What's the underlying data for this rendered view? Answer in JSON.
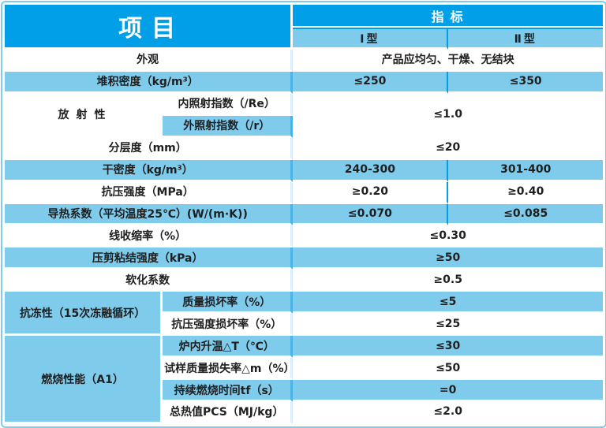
{
  "colors": {
    "accent_bright_blue": "#009fe8",
    "row_light_blue": "#7fcbec",
    "outer_border": "#7fcbec",
    "text_dark": "#1f1f1f",
    "header_text": "#ffffff"
  },
  "header": {
    "item_label": "项目",
    "indicator_label": "指标",
    "type1_label": "Ⅰ型",
    "type2_label": "Ⅱ型"
  },
  "categories": {
    "radioactivity": "放射性",
    "frost_resistance": "抗冻性（15次冻融循环）",
    "combustion": "燃烧性能（A1）"
  },
  "rows": {
    "appearance": {
      "label": "外观",
      "value": "产品应均匀、干燥、无结块"
    },
    "bulk_density": {
      "label": "堆积密度（kg/m³）",
      "v1": "≤250",
      "v2": "≤350"
    },
    "internal_exposure": {
      "label": "内照射指数（/Re）"
    },
    "external_exposure": {
      "label": "外照射指数（/r）"
    },
    "radioactivity_value": "≤1.0",
    "delamination": {
      "label": "分层度（mm）",
      "value": "≤20"
    },
    "dry_density": {
      "label": "干密度（kg/m³）",
      "v1": "240-300",
      "v2": "301-400"
    },
    "compressive_strength": {
      "label": "抗压强度（MPa）",
      "v1": "≥0.20",
      "v2": "≥0.40"
    },
    "thermal_conductivity": {
      "label": "导热系数（平均温度25℃）(W/(m·K))",
      "v1": "≤0.070",
      "v2": "≤0.085"
    },
    "linear_shrinkage": {
      "label": "线收缩率（%）",
      "value": "≤0.30"
    },
    "shear_bond_strength": {
      "label": "压剪粘结强度（kPa）",
      "value": "≥50"
    },
    "softening_coefficient": {
      "label": "软化系数",
      "value": "≥0.5"
    },
    "mass_damage_rate": {
      "label": "质量损坏率（%）",
      "value": "≤5"
    },
    "strength_damage_rate": {
      "label": "抗压强度损坏率（%）",
      "value": "≤25"
    },
    "furnace_temp_rise": {
      "label": "炉内升温△T（℃）",
      "value": "≤30"
    },
    "mass_loss_rate": {
      "label": "试样质量损失率△m（%）",
      "value": "≤50"
    },
    "burning_duration": {
      "label": "持续燃烧时间tf（s）",
      "value": "=0"
    },
    "gross_heat_value": {
      "label": "总热值PCS（MJ/kg）",
      "value": "≤2.0"
    }
  }
}
